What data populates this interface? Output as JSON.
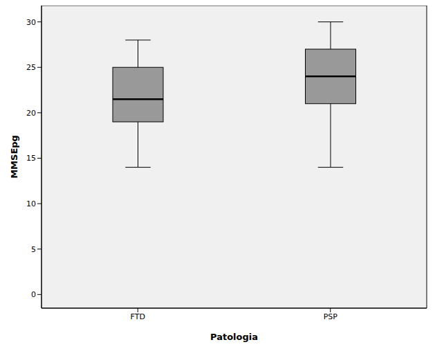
{
  "chart_data": {
    "type": "box",
    "categories": [
      "FTD",
      "PSP"
    ],
    "boxes": [
      {
        "min": 14,
        "q1": 19,
        "median": 21.5,
        "q3": 25,
        "max": 28
      },
      {
        "min": 14,
        "q1": 21,
        "median": 24,
        "q3": 27,
        "max": 30
      }
    ],
    "color": "#999999",
    "x_label": "Patologia",
    "y_label": "MMSEpg",
    "ylim": [
      -1.5,
      31.8
    ],
    "yticks": [
      0,
      5,
      10,
      15,
      20,
      25,
      30
    ],
    "grid": false
  }
}
